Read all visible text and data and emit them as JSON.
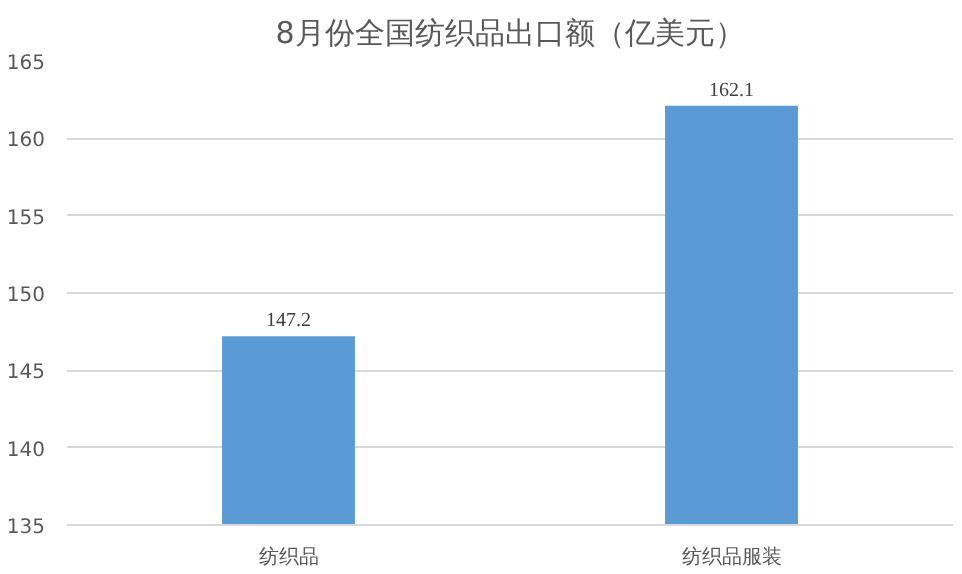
{
  "chart_data": {
    "type": "bar",
    "title": "8月份全国纺织品出口额（亿美元）",
    "categories": [
      "纺织品",
      "纺织品服装"
    ],
    "values": [
      147.2,
      162.1
    ],
    "color": "#5b9bd5",
    "ylim": [
      135,
      165
    ],
    "yticks": [
      135,
      140,
      145,
      150,
      155,
      160,
      165
    ],
    "grid": "y",
    "data_labels": true
  }
}
